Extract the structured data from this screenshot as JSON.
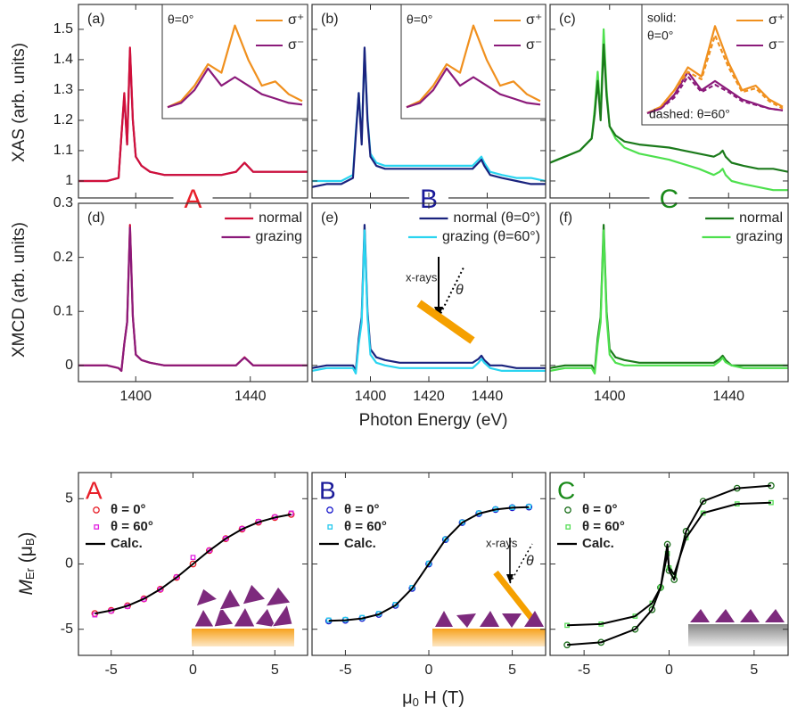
{
  "labels": {
    "xas_ylabel": "XAS (arb. units)",
    "xmcd_ylabel": "XMCD (arb. units)",
    "energy_xlabel": "Photon Energy (eV)",
    "m_ylabel": [
      "M",
      "Er",
      " (μ",
      "B",
      ")"
    ],
    "h_xlabel": [
      "μ",
      "0",
      " H (T)"
    ]
  },
  "chart_data": [
    {
      "type": "line",
      "panel": "(a)",
      "tag": "A",
      "tag_color": "#e8202a",
      "xlim": [
        1380,
        1460
      ],
      "ylim": [
        0.944,
        1.582
      ],
      "yticks": [
        1.0,
        1.1,
        1.2,
        1.3,
        1.4,
        1.5
      ],
      "x": [
        1380,
        1385,
        1390,
        1394,
        1395,
        1396,
        1397,
        1398,
        1399,
        1400,
        1402,
        1405,
        1410,
        1420,
        1430,
        1435,
        1437,
        1438,
        1439,
        1441,
        1445,
        1450,
        1455,
        1460
      ],
      "series": [
        {
          "color": "#8b1a7a",
          "values": [
            1.0,
            1.0,
            1.0,
            1.01,
            1.15,
            1.28,
            1.12,
            1.43,
            1.2,
            1.08,
            1.05,
            1.03,
            1.02,
            1.02,
            1.02,
            1.03,
            1.05,
            1.06,
            1.05,
            1.03,
            1.03,
            1.03,
            1.03,
            1.03
          ]
        },
        {
          "color": "#d0103a",
          "values": [
            1.0,
            1.0,
            1.0,
            1.01,
            1.15,
            1.29,
            1.12,
            1.44,
            1.2,
            1.08,
            1.05,
            1.03,
            1.02,
            1.02,
            1.02,
            1.03,
            1.05,
            1.06,
            1.05,
            1.03,
            1.03,
            1.03,
            1.03,
            1.03
          ]
        }
      ],
      "inset": {
        "labels": [
          "θ=0°"
        ],
        "xlim": [
          1390,
          1410
        ],
        "ylim": [
          0,
          1.1
        ],
        "x": [
          1390,
          1392,
          1394,
          1396,
          1398,
          1400,
          1402,
          1404,
          1406,
          1408,
          1410
        ],
        "series": [
          {
            "name": "σ⁺",
            "color": "#f0901e",
            "values": [
              0.05,
              0.12,
              0.3,
              0.55,
              0.45,
              1.0,
              0.6,
              0.3,
              0.35,
              0.2,
              0.12
            ]
          },
          {
            "name": "σ⁻",
            "color": "#8b1a7a",
            "values": [
              0.05,
              0.1,
              0.25,
              0.5,
              0.3,
              0.4,
              0.3,
              0.2,
              0.15,
              0.1,
              0.08
            ]
          }
        ]
      }
    },
    {
      "type": "line",
      "panel": "(b)",
      "tag": "B",
      "tag_color": "#1a1a99",
      "xlim": [
        1380,
        1460
      ],
      "ylim": [
        0.944,
        1.582
      ],
      "x": [
        1380,
        1385,
        1390,
        1394,
        1395,
        1396,
        1397,
        1398,
        1399,
        1400,
        1402,
        1405,
        1410,
        1420,
        1430,
        1435,
        1437,
        1438,
        1439,
        1441,
        1445,
        1450,
        1455,
        1460
      ],
      "series": [
        {
          "color": "#2ad4f0",
          "values": [
            1.0,
            1.0,
            1.0,
            1.02,
            1.16,
            1.29,
            1.13,
            1.43,
            1.21,
            1.09,
            1.06,
            1.05,
            1.05,
            1.05,
            1.05,
            1.05,
            1.07,
            1.08,
            1.06,
            1.03,
            1.02,
            1.01,
            1.01,
            1.0
          ]
        },
        {
          "color": "#1a237e",
          "values": [
            0.98,
            0.99,
            0.99,
            1.01,
            1.15,
            1.29,
            1.12,
            1.44,
            1.2,
            1.08,
            1.05,
            1.04,
            1.04,
            1.04,
            1.04,
            1.04,
            1.06,
            1.07,
            1.05,
            1.02,
            1.01,
            1.0,
            0.99,
            0.99
          ]
        }
      ],
      "inset": {
        "labels": [
          "θ=0°"
        ],
        "xlim": [
          1390,
          1410
        ],
        "ylim": [
          0,
          1.1
        ],
        "x": [
          1390,
          1392,
          1394,
          1396,
          1398,
          1400,
          1402,
          1404,
          1406,
          1408,
          1410
        ],
        "series": [
          {
            "name": "σ⁺",
            "color": "#f0901e",
            "values": [
              0.05,
              0.12,
              0.3,
              0.55,
              0.45,
              1.0,
              0.6,
              0.3,
              0.35,
              0.2,
              0.12
            ]
          },
          {
            "name": "σ⁻",
            "color": "#8b1a7a",
            "values": [
              0.05,
              0.1,
              0.25,
              0.5,
              0.3,
              0.4,
              0.3,
              0.2,
              0.15,
              0.1,
              0.08
            ]
          }
        ]
      }
    },
    {
      "type": "line",
      "panel": "(c)",
      "tag": "C",
      "tag_color": "#1a8a1a",
      "xlim": [
        1380,
        1460
      ],
      "ylim": [
        0.944,
        1.582
      ],
      "x": [
        1380,
        1385,
        1390,
        1394,
        1395,
        1396,
        1397,
        1398,
        1399,
        1400,
        1402,
        1405,
        1410,
        1420,
        1430,
        1435,
        1437,
        1438,
        1439,
        1441,
        1445,
        1450,
        1455,
        1460
      ],
      "series": [
        {
          "color": "#4ee04e",
          "values": [
            1.06,
            1.08,
            1.1,
            1.14,
            1.24,
            1.36,
            1.22,
            1.5,
            1.3,
            1.18,
            1.14,
            1.11,
            1.09,
            1.07,
            1.04,
            1.02,
            1.03,
            1.04,
            1.02,
            1.0,
            0.99,
            0.98,
            0.97,
            0.97
          ]
        },
        {
          "color": "#1b7a1b",
          "values": [
            1.06,
            1.08,
            1.1,
            1.14,
            1.22,
            1.33,
            1.2,
            1.45,
            1.28,
            1.18,
            1.15,
            1.13,
            1.12,
            1.11,
            1.09,
            1.08,
            1.09,
            1.1,
            1.08,
            1.06,
            1.05,
            1.04,
            1.04,
            1.03
          ]
        }
      ],
      "inset": {
        "labels": [
          "solid:",
          "θ=0°",
          "dashed: θ=60°"
        ],
        "xlim": [
          1390,
          1410
        ],
        "ylim": [
          0,
          1.1
        ],
        "x": [
          1390,
          1392,
          1394,
          1396,
          1398,
          1400,
          1402,
          1404,
          1406,
          1408,
          1410
        ],
        "series": [
          {
            "name": "σ⁺",
            "color": "#f0901e",
            "values": [
              0.05,
              0.12,
              0.3,
              0.55,
              0.45,
              1.0,
              0.6,
              0.3,
              0.35,
              0.2,
              0.12
            ]
          },
          {
            "name": "σ⁻",
            "color": "#8b1a7a",
            "values": [
              0.05,
              0.1,
              0.25,
              0.5,
              0.3,
              0.4,
              0.3,
              0.2,
              0.15,
              0.1,
              0.08
            ]
          },
          {
            "color": "#f0901e",
            "dash": true,
            "values": [
              0.05,
              0.12,
              0.3,
              0.5,
              0.42,
              0.9,
              0.55,
              0.28,
              0.32,
              0.18,
              0.1
            ]
          },
          {
            "color": "#8b1a7a",
            "dash": true,
            "values": [
              0.05,
              0.1,
              0.22,
              0.45,
              0.28,
              0.36,
              0.28,
              0.18,
              0.14,
              0.1,
              0.08
            ]
          }
        ]
      }
    },
    {
      "type": "line",
      "panel": "(d)",
      "legend": "upper right",
      "xlim": [
        1380,
        1460
      ],
      "ylim": [
        -0.03,
        0.3
      ],
      "yticks": [
        0.0,
        0.1,
        0.2,
        0.3
      ],
      "xticks": [
        1400,
        1440
      ],
      "x": [
        1380,
        1385,
        1390,
        1394,
        1395,
        1396,
        1397,
        1398,
        1399,
        1400,
        1402,
        1405,
        1410,
        1420,
        1430,
        1435,
        1437,
        1438,
        1439,
        1441,
        1445,
        1450,
        1455,
        1460
      ],
      "series": [
        {
          "name": "normal",
          "color": "#d0103a",
          "values": [
            0,
            0,
            0,
            -0.005,
            -0.01,
            0.04,
            0.08,
            0.26,
            0.09,
            0.02,
            0.01,
            0.005,
            0,
            0,
            0,
            0,
            0.01,
            0.015,
            0.01,
            0,
            0,
            0,
            0,
            0
          ]
        },
        {
          "name": "grazing",
          "color": "#8b1a7a",
          "values": [
            0,
            0,
            0,
            -0.005,
            -0.01,
            0.04,
            0.08,
            0.255,
            0.09,
            0.02,
            0.01,
            0.005,
            0,
            0,
            0,
            0,
            0.01,
            0.014,
            0.01,
            0,
            0,
            0,
            0,
            0
          ]
        }
      ]
    },
    {
      "type": "line",
      "panel": "(e)",
      "legend": "upper right",
      "annotations": [
        "x-rays",
        "θ"
      ],
      "xlim": [
        1380,
        1460
      ],
      "ylim": [
        -0.03,
        0.3
      ],
      "xticks": [
        1400,
        1420,
        1440
      ],
      "x": [
        1380,
        1385,
        1390,
        1394,
        1395,
        1396,
        1397,
        1398,
        1399,
        1400,
        1402,
        1405,
        1410,
        1420,
        1430,
        1435,
        1437,
        1438,
        1439,
        1441,
        1445,
        1450,
        1455,
        1460
      ],
      "series": [
        {
          "name": "normal (θ=0°)",
          "color": "#1a237e",
          "values": [
            -0.005,
            0,
            0,
            0,
            -0.01,
            0.05,
            0.09,
            0.26,
            0.1,
            0.03,
            0.015,
            0.01,
            0.005,
            0.005,
            0.005,
            0.005,
            0.012,
            0.018,
            0.01,
            0,
            0,
            -0.005,
            -0.005,
            -0.005
          ]
        },
        {
          "name": "grazing (θ=60°)",
          "color": "#2ad4f0",
          "values": [
            -0.01,
            -0.005,
            -0.005,
            -0.005,
            -0.015,
            0.04,
            0.08,
            0.25,
            0.09,
            0.02,
            0.005,
            0,
            -0.005,
            -0.005,
            -0.005,
            -0.005,
            0.005,
            0.012,
            0.005,
            -0.005,
            -0.01,
            -0.01,
            -0.01,
            -0.01
          ]
        }
      ]
    },
    {
      "type": "line",
      "panel": "(f)",
      "legend": "upper right",
      "xlim": [
        1380,
        1460
      ],
      "ylim": [
        -0.03,
        0.3
      ],
      "xticks": [
        1400,
        1440
      ],
      "x": [
        1380,
        1385,
        1390,
        1394,
        1395,
        1396,
        1397,
        1398,
        1399,
        1400,
        1402,
        1405,
        1410,
        1420,
        1430,
        1435,
        1437,
        1438,
        1439,
        1441,
        1445,
        1450,
        1455,
        1460
      ],
      "series": [
        {
          "name": "normal",
          "color": "#1b7a1b",
          "values": [
            -0.005,
            0,
            0,
            0,
            -0.01,
            0.05,
            0.09,
            0.26,
            0.1,
            0.03,
            0.015,
            0.01,
            0.005,
            0.005,
            0.005,
            0.005,
            0.012,
            0.018,
            0.01,
            0,
            0,
            0,
            0,
            0
          ]
        },
        {
          "name": "grazing",
          "color": "#4ee04e",
          "values": [
            -0.01,
            -0.005,
            -0.005,
            -0.005,
            -0.015,
            0.04,
            0.08,
            0.25,
            0.09,
            0.02,
            0.005,
            0,
            0,
            0,
            0,
            0,
            0.008,
            0.014,
            0.006,
            0,
            -0.005,
            -0.005,
            -0.005,
            -0.005
          ]
        }
      ]
    },
    {
      "type": "scatter",
      "tag": "A",
      "tag_color": "#e8202a",
      "legend": "upper left",
      "xlim": [
        -7,
        7
      ],
      "ylim": [
        -7,
        7
      ],
      "yticks": [
        -5,
        0,
        5
      ],
      "xticks": [
        -5,
        0,
        5
      ],
      "x": [
        -6,
        -5,
        -4,
        -3,
        -2,
        -1,
        0,
        1,
        2,
        3,
        4,
        5,
        6
      ],
      "series": [
        {
          "name": "θ = 0°",
          "marker": "circle",
          "color": "#e8202a",
          "values": [
            -3.8,
            -3.56,
            -3.2,
            -2.67,
            -1.94,
            -1.03,
            0,
            1.03,
            1.94,
            2.67,
            3.2,
            3.56,
            3.8
          ]
        },
        {
          "name": "θ = 60°",
          "marker": "square",
          "color": "#e020e0",
          "values": [
            -3.9,
            -3.6,
            -3.25,
            -2.7,
            -1.95,
            -1.0,
            0.5,
            1.05,
            1.95,
            2.7,
            3.25,
            3.6,
            3.9
          ]
        },
        {
          "name": "Calc.",
          "color": "#000000",
          "values": [
            -3.8,
            -3.56,
            -3.2,
            -2.67,
            -1.94,
            -1.03,
            0,
            1.03,
            1.94,
            2.67,
            3.2,
            3.56,
            3.8
          ]
        }
      ]
    },
    {
      "type": "scatter",
      "tag": "B",
      "tag_color": "#1a1a99",
      "legend": "upper left",
      "annotations": [
        "x-rays",
        "θ"
      ],
      "xlim": [
        -7,
        7
      ],
      "ylim": [
        -7,
        7
      ],
      "xticks": [
        -5,
        0,
        5
      ],
      "x": [
        -6,
        -5,
        -4,
        -3,
        -2,
        -1,
        0,
        1,
        2,
        3,
        4,
        5,
        6
      ],
      "series": [
        {
          "name": "θ = 0°",
          "marker": "circle",
          "color": "#1a1acc",
          "values": [
            -4.36,
            -4.31,
            -4.17,
            -3.86,
            -3.17,
            -1.87,
            0,
            1.87,
            3.17,
            3.86,
            4.17,
            4.31,
            4.36
          ]
        },
        {
          "name": "θ = 60°",
          "marker": "square",
          "color": "#22c8ee",
          "values": [
            -4.3,
            -4.25,
            -4.1,
            -3.8,
            -3.1,
            -1.8,
            0.05,
            1.9,
            3.2,
            3.9,
            4.2,
            4.33,
            4.4
          ]
        },
        {
          "name": "Calc.",
          "color": "#000000",
          "values": [
            -4.36,
            -4.31,
            -4.17,
            -3.86,
            -3.17,
            -1.87,
            0,
            1.87,
            3.17,
            3.86,
            4.17,
            4.31,
            4.36
          ]
        }
      ]
    },
    {
      "type": "scatter",
      "tag": "C",
      "tag_color": "#1a8a1a",
      "legend": "upper left",
      "xlim": [
        -7,
        7
      ],
      "ylim": [
        -7,
        7
      ],
      "xticks": [
        -5,
        0,
        5
      ],
      "x": [
        -6,
        -4,
        -2,
        -1,
        -0.5,
        -0.1,
        0,
        0.3,
        1,
        2,
        4,
        6
      ],
      "series": [
        {
          "name": "θ = 0°",
          "marker": "circle",
          "color": "#1a6e1a",
          "values": [
            -6.2,
            -6.0,
            -5.0,
            -3.5,
            -1.8,
            1.5,
            -0.5,
            -1.2,
            2.5,
            4.8,
            5.8,
            6.0
          ]
        },
        {
          "name": "θ = 60°",
          "marker": "square",
          "color": "#55dd55",
          "values": [
            -4.7,
            -4.6,
            -4.0,
            -3.0,
            -1.8,
            0.8,
            -0.3,
            -0.8,
            2.0,
            3.9,
            4.6,
            4.7
          ]
        },
        {
          "name": "Calc.",
          "color": "#000000",
          "values": [
            -6.2,
            -6.0,
            -5.0,
            -3.5,
            -1.8,
            1.5,
            -0.5,
            -1.2,
            2.5,
            4.8,
            5.8,
            6.0
          ]
        },
        {
          "color": "#000000",
          "values": [
            -4.7,
            -4.6,
            -4.0,
            -3.0,
            -1.8,
            0.8,
            -0.3,
            -0.8,
            2.0,
            3.9,
            4.6,
            4.7
          ]
        }
      ]
    }
  ]
}
